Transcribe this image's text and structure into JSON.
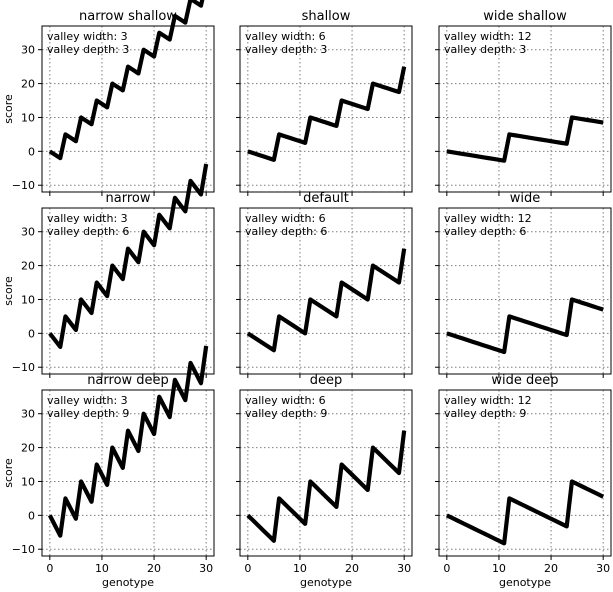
{
  "chart_data": {
    "type": "line",
    "layout": "3x3 grid of line plots, shared x and y axes",
    "shared": {
      "xlabel": "genotype",
      "ylabel": "score",
      "xlim": [
        -1.5,
        31.5
      ],
      "ylim": [
        -12,
        37
      ],
      "xticks": [
        0,
        10,
        20,
        30
      ],
      "yticks": [
        -10,
        0,
        10,
        20,
        30
      ],
      "grid": true,
      "grid_style": "dotted",
      "line_color": "#000000"
    },
    "panels": [
      {
        "title": "narrow shallow",
        "valley_width": 3,
        "valley_depth": 3,
        "annotation": [
          "valley width: 3",
          "valley depth: 3"
        ]
      },
      {
        "title": "shallow",
        "valley_width": 6,
        "valley_depth": 3,
        "annotation": [
          "valley width: 6",
          "valley depth: 3"
        ]
      },
      {
        "title": "wide shallow",
        "valley_width": 12,
        "valley_depth": 3,
        "annotation": [
          "valley width: 12",
          "valley depth: 3"
        ]
      },
      {
        "title": "narrow",
        "valley_width": 3,
        "valley_depth": 6,
        "annotation": [
          "valley width: 3",
          "valley depth: 6"
        ]
      },
      {
        "title": "default",
        "valley_width": 6,
        "valley_depth": 6,
        "annotation": [
          "valley width: 6",
          "valley depth: 6"
        ]
      },
      {
        "title": "wide",
        "valley_width": 12,
        "valley_depth": 6,
        "annotation": [
          "valley width: 12",
          "valley depth: 6"
        ]
      },
      {
        "title": "narrow deep",
        "valley_width": 3,
        "valley_depth": 9,
        "annotation": [
          "valley width: 3",
          "valley depth: 9"
        ]
      },
      {
        "title": "deep",
        "valley_width": 6,
        "valley_depth": 9,
        "annotation": [
          "valley width: 6",
          "valley depth: 9"
        ]
      },
      {
        "title": "wide deep",
        "valley_width": 12,
        "valley_depth": 9,
        "annotation": [
          "valley width: 12",
          "valley depth: 9"
        ]
      }
    ]
  }
}
